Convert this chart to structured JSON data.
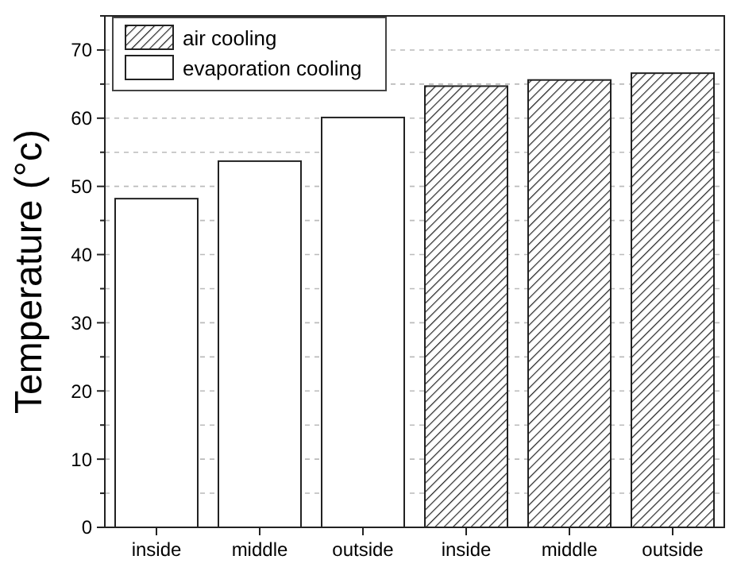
{
  "chart_data": {
    "type": "bar",
    "ylabel": "Temperature (°c)",
    "categories": [
      "inside",
      "middle",
      "outside",
      "inside",
      "middle",
      "outside"
    ],
    "series": [
      {
        "name": "air cooling",
        "color": "#222222",
        "values": [
          null,
          null,
          null,
          64.7,
          65.6,
          66.6
        ]
      },
      {
        "name": "evaporation cooling",
        "color": "#ffffff",
        "values": [
          48.2,
          53.7,
          60.1,
          null,
          null,
          null
        ]
      }
    ],
    "ylim": [
      0,
      75
    ],
    "yticks": [
      0,
      {
        "value": 5,
        "label": null
      },
      10,
      {
        "value": 15,
        "label": null
      },
      20,
      {
        "value": 25,
        "label": null
      },
      30,
      {
        "value": 35,
        "label": null
      },
      40,
      {
        "value": 45,
        "label": null
      },
      50,
      {
        "value": 55,
        "label": null
      },
      60,
      {
        "value": 65,
        "label": null
      },
      70,
      {
        "value": 75,
        "label": null
      }
    ],
    "grid": "y",
    "legend": "top left"
  }
}
